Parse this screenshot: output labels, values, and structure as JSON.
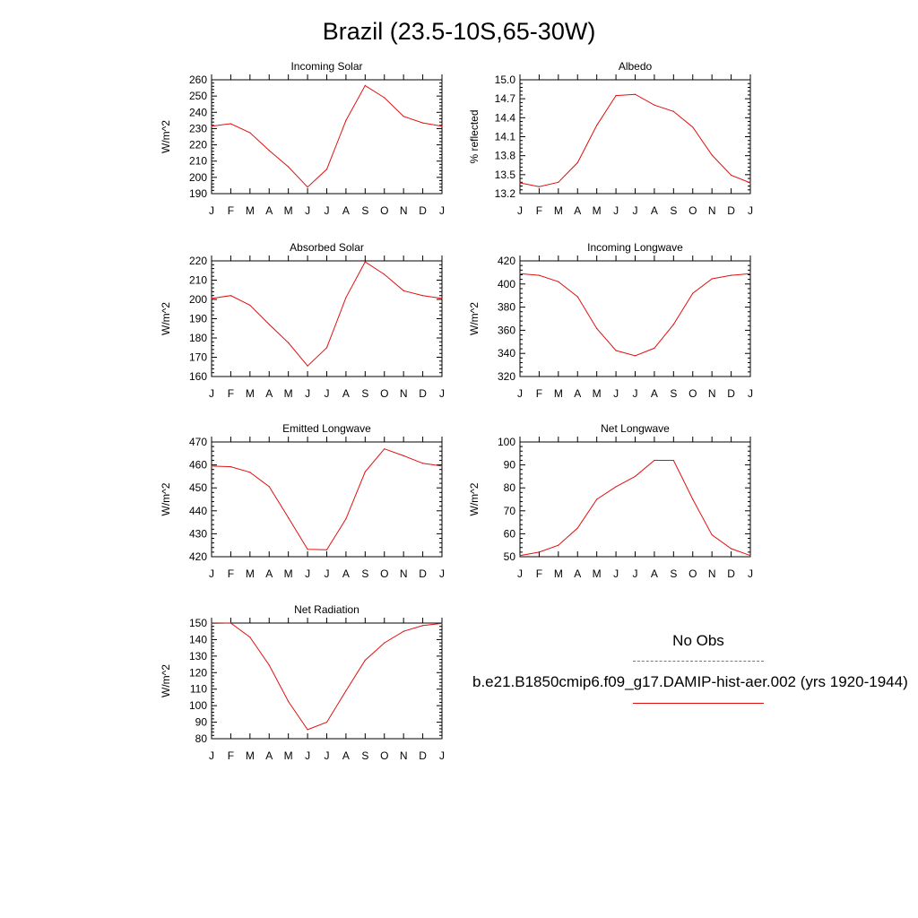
{
  "title": "Brazil (23.5-10S,65-30W)",
  "months": [
    "J",
    "F",
    "M",
    "A",
    "M",
    "J",
    "J",
    "A",
    "S",
    "O",
    "N",
    "D",
    "J"
  ],
  "legend": {
    "obs_label": "No Obs",
    "model_label": "b.e21.B1850cmip6.f09_g17.DAMIP-hist-aer.002 (yrs 1920-1944)",
    "obs_color": "#6a6aee",
    "model_color": "#e01010"
  },
  "chart_data": [
    {
      "type": "line",
      "title": "Incoming Solar",
      "ylabel": "W/m^2",
      "ylim": [
        190,
        260
      ],
      "yticks": [
        "190",
        "200",
        "210",
        "220",
        "230",
        "240",
        "250",
        "260"
      ],
      "series": [
        {
          "values": [
            231.5,
            233,
            227.5,
            216.5,
            206.5,
            194,
            205,
            235,
            256.5,
            249,
            237.5,
            233.5,
            231.5
          ]
        }
      ]
    },
    {
      "type": "line",
      "title": "Albedo",
      "ylabel": "% reflected",
      "ylim": [
        13.2,
        15.0
      ],
      "yticks": [
        "13.2",
        "13.5",
        "13.8",
        "14.1",
        "14.4",
        "14.7",
        "15.0"
      ],
      "series": [
        {
          "values": [
            13.37,
            13.31,
            13.38,
            13.69,
            14.28,
            14.75,
            14.77,
            14.6,
            14.5,
            14.25,
            13.81,
            13.49,
            13.37
          ]
        }
      ]
    },
    {
      "type": "line",
      "title": "Absorbed Solar",
      "ylabel": "W/m^2",
      "ylim": [
        160,
        220
      ],
      "yticks": [
        "160",
        "170",
        "180",
        "190",
        "200",
        "210",
        "220"
      ],
      "series": [
        {
          "values": [
            200.5,
            202,
            197,
            187,
            177.5,
            165.5,
            175,
            201,
            219.5,
            213,
            204.5,
            202,
            200.5
          ]
        }
      ]
    },
    {
      "type": "line",
      "title": "Incoming Longwave",
      "ylabel": "W/m^2",
      "ylim": [
        320,
        420
      ],
      "yticks": [
        "320",
        "340",
        "360",
        "380",
        "400",
        "420"
      ],
      "series": [
        {
          "values": [
            409,
            407.5,
            402,
            389,
            361.5,
            342.5,
            338,
            344.5,
            365,
            392,
            404.5,
            407.5,
            409
          ]
        }
      ]
    },
    {
      "type": "line",
      "title": "Emitted Longwave",
      "ylabel": "W/m^2",
      "ylim": [
        420,
        470
      ],
      "yticks": [
        "420",
        "430",
        "440",
        "450",
        "460",
        "470"
      ],
      "series": [
        {
          "values": [
            459.5,
            459.2,
            456.8,
            450.5,
            437,
            423.2,
            423,
            436.5,
            457,
            467,
            464,
            460.7,
            459.5
          ]
        }
      ]
    },
    {
      "type": "line",
      "title": "Net Longwave",
      "ylabel": "W/m^2",
      "ylim": [
        50,
        100
      ],
      "yticks": [
        "50",
        "60",
        "70",
        "80",
        "90",
        "100"
      ],
      "series": [
        {
          "values": [
            50.5,
            52,
            55,
            62.5,
            75,
            80.5,
            85,
            92,
            92,
            75,
            59.5,
            53.5,
            50.5
          ]
        }
      ]
    },
    {
      "type": "line",
      "title": "Net Radiation",
      "ylabel": "W/m^2",
      "ylim": [
        80,
        150
      ],
      "yticks": [
        "80",
        "90",
        "100",
        "110",
        "120",
        "130",
        "140",
        "150"
      ],
      "series": [
        {
          "values": [
            149.8,
            150,
            141.5,
            124.5,
            102.5,
            85.5,
            90,
            109,
            127.5,
            138,
            145,
            148.5,
            149.8
          ]
        }
      ]
    }
  ]
}
